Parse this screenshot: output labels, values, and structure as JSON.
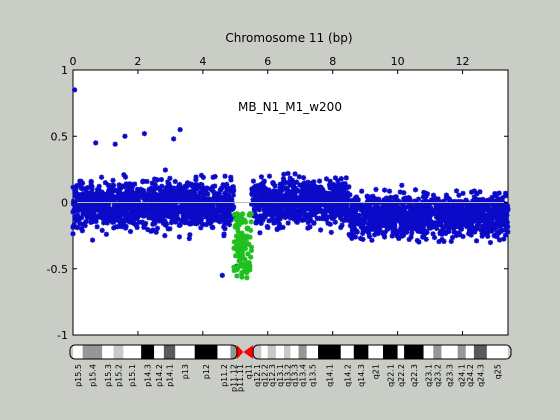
{
  "chart_data": {
    "type": "scatter",
    "title": "Chromosome 11 (bp)",
    "annotation": "MB_N1_M1_w200",
    "x_axis_position": "top",
    "xlim": [
      0,
      13.4
    ],
    "ylim": [
      -1,
      1
    ],
    "x_ticks": [
      0,
      2,
      4,
      6,
      8,
      10,
      12
    ],
    "y_ticks": [
      1,
      0.5,
      0,
      -0.5,
      -1
    ],
    "x_tick_labels": [
      "0",
      "2",
      "4",
      "6",
      "8",
      "10",
      "12"
    ],
    "y_tick_labels": [
      "1",
      "0.5",
      "0",
      "-0.5",
      "-1"
    ],
    "baseline_y": 0,
    "colors": {
      "normal": "#0a0ac8",
      "deleted": "#1fbf1f",
      "background": "#ffffff",
      "figure": "#c9cdc6",
      "baseline": "#bbbbbb"
    },
    "series": [
      {
        "segments": [
          {
            "x_start": 0.0,
            "x_end": 4.95,
            "mean": -0.02,
            "spread": 0.16
          },
          {
            "x_start": 5.5,
            "x_end": 8.5,
            "mean": 0.0,
            "spread": 0.15
          },
          {
            "x_start": 8.5,
            "x_end": 13.4,
            "mean": -0.1,
            "spread": 0.14
          }
        ],
        "outliers": [
          {
            "x": 0.05,
            "y": 0.85
          },
          {
            "x": 0.7,
            "y": 0.45
          },
          {
            "x": 1.6,
            "y": 0.5
          },
          {
            "x": 2.2,
            "y": 0.52
          },
          {
            "x": 3.3,
            "y": 0.55
          },
          {
            "x": 3.1,
            "y": 0.48
          },
          {
            "x": 1.3,
            "y": 0.44
          },
          {
            "x": 4.6,
            "y": -0.55
          },
          {
            "x": 5.05,
            "y": -0.48
          }
        ]
      },
      {
        "x_range": [
          4.95,
          5.5
        ],
        "y_range": [
          -0.57,
          -0.08
        ]
      }
    ]
  },
  "ideogram": {
    "bands": [
      {
        "label": "p15.5",
        "start": 0.0,
        "end": 0.3,
        "stain": "gneg"
      },
      {
        "label": "p15.4",
        "start": 0.3,
        "end": 0.9,
        "stain": "gpos50"
      },
      {
        "label": "p15.3",
        "start": 0.9,
        "end": 1.25,
        "stain": "gneg"
      },
      {
        "label": "p15.2",
        "start": 1.25,
        "end": 1.55,
        "stain": "gpos25"
      },
      {
        "label": "p15.1",
        "start": 1.55,
        "end": 2.1,
        "stain": "gneg"
      },
      {
        "label": "p14.3",
        "start": 2.1,
        "end": 2.5,
        "stain": "gpos100"
      },
      {
        "label": "p14.2",
        "start": 2.5,
        "end": 2.8,
        "stain": "gneg"
      },
      {
        "label": "p14.1",
        "start": 2.8,
        "end": 3.15,
        "stain": "gpos75"
      },
      {
        "label": "p13",
        "start": 3.15,
        "end": 3.75,
        "stain": "gneg"
      },
      {
        "label": "p12",
        "start": 3.75,
        "end": 4.45,
        "stain": "gpos100"
      },
      {
        "label": "p11.2",
        "start": 4.45,
        "end": 4.85,
        "stain": "gneg"
      },
      {
        "label": "p11.12",
        "start": 4.85,
        "end": 5.05,
        "stain": "gpos50"
      },
      {
        "label": "p11.11",
        "start": 5.05,
        "end": 5.25,
        "stain": "acen"
      },
      {
        "label": "q11",
        "start": 5.25,
        "end": 5.55,
        "stain": "acen"
      },
      {
        "label": "q12.1",
        "start": 5.55,
        "end": 5.8,
        "stain": "gpos25"
      },
      {
        "label": "q12.2",
        "start": 5.8,
        "end": 6.0,
        "stain": "gneg"
      },
      {
        "label": "q12.3",
        "start": 6.0,
        "end": 6.25,
        "stain": "gpos25"
      },
      {
        "label": "q13.1",
        "start": 6.25,
        "end": 6.5,
        "stain": "gneg"
      },
      {
        "label": "q13.2",
        "start": 6.5,
        "end": 6.7,
        "stain": "gpos25"
      },
      {
        "label": "q13.3",
        "start": 6.7,
        "end": 6.95,
        "stain": "gneg"
      },
      {
        "label": "q13.4",
        "start": 6.95,
        "end": 7.2,
        "stain": "gpos50"
      },
      {
        "label": "q13.5",
        "start": 7.2,
        "end": 7.55,
        "stain": "gneg"
      },
      {
        "label": "q14.1",
        "start": 7.55,
        "end": 8.25,
        "stain": "gpos100"
      },
      {
        "label": "q14.2",
        "start": 8.25,
        "end": 8.65,
        "stain": "gneg"
      },
      {
        "label": "q14.3",
        "start": 8.65,
        "end": 9.1,
        "stain": "gpos100"
      },
      {
        "label": "q21",
        "start": 9.1,
        "end": 9.55,
        "stain": "gneg"
      },
      {
        "label": "q22.1",
        "start": 9.55,
        "end": 10.0,
        "stain": "gpos100"
      },
      {
        "label": "q22.2",
        "start": 10.0,
        "end": 10.2,
        "stain": "gneg"
      },
      {
        "label": "q22.3",
        "start": 10.2,
        "end": 10.8,
        "stain": "gpos100"
      },
      {
        "label": "q23.1",
        "start": 10.8,
        "end": 11.1,
        "stain": "gneg"
      },
      {
        "label": "q23.2",
        "start": 11.1,
        "end": 11.35,
        "stain": "gpos50"
      },
      {
        "label": "q23.3",
        "start": 11.35,
        "end": 11.85,
        "stain": "gneg"
      },
      {
        "label": "q24.1",
        "start": 11.85,
        "end": 12.1,
        "stain": "gpos50"
      },
      {
        "label": "q24.2",
        "start": 12.1,
        "end": 12.35,
        "stain": "gneg"
      },
      {
        "label": "q24.3",
        "start": 12.35,
        "end": 12.75,
        "stain": "gpos75"
      },
      {
        "label": "q25",
        "start": 12.75,
        "end": 13.4,
        "stain": "gneg"
      }
    ]
  }
}
